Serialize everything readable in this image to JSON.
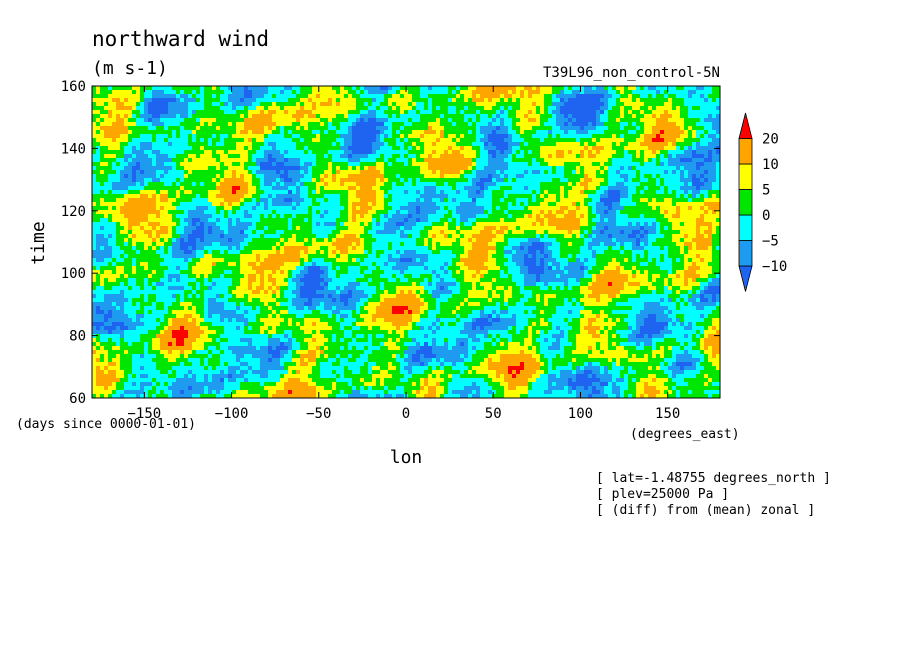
{
  "chart_data": {
    "type": "heatmap",
    "title": "northward wind",
    "units": "(m s-1)",
    "run_label": "T39L96_non_control-5N",
    "xlabel": "lon",
    "xunit": "(degrees_east)",
    "ylabel": "time",
    "yunit": "(days since 0000-01-01)",
    "xlim": [
      -180,
      180
    ],
    "ylim": [
      60,
      160
    ],
    "x_ticks": [
      -150,
      -100,
      -50,
      0,
      50,
      100,
      150
    ],
    "x_tick_labels": [
      "−150",
      "−100",
      "−50",
      "0",
      "50",
      "100",
      "150"
    ],
    "y_ticks": [
      60,
      80,
      100,
      120,
      140,
      160
    ],
    "y_tick_labels": [
      "60",
      "80",
      "100",
      "120",
      "140",
      "160"
    ],
    "colorbar": {
      "levels": [
        -10,
        -5,
        0,
        5,
        10,
        20
      ],
      "labels": [
        "−10",
        "−5",
        "0",
        "5",
        "10",
        "20"
      ],
      "colors": [
        "#1f64f0",
        "#1e9bef",
        "#00ffff",
        "#00e600",
        "#ffff00",
        "#ffa500",
        "#ff0000"
      ]
    },
    "annotations": [
      "[ lat=-1.48755 degrees_north ]",
      "[ plev=25000 Pa ]",
      "[ (diff) from (mean) zonal ]"
    ]
  }
}
